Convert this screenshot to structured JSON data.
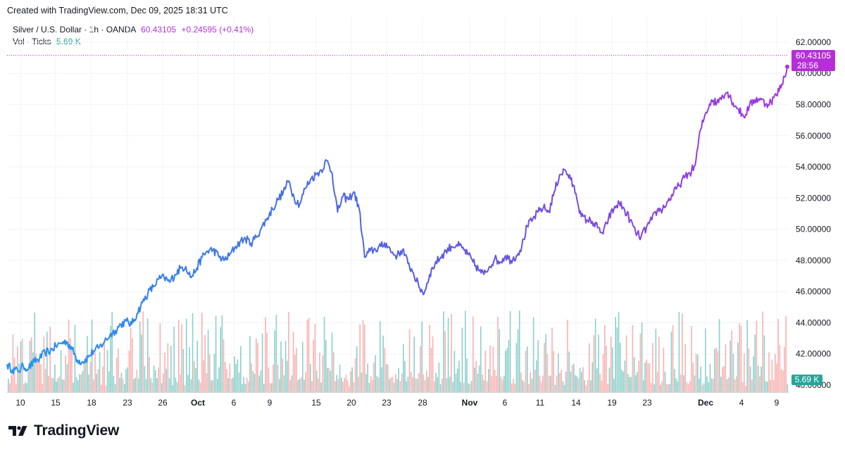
{
  "header": {
    "created_text": "Created with TradingView.com, Dec 09, 2025 18:31 UTC"
  },
  "legend": {
    "symbol": "Silver / U.S. Dollar · 1h · OANDA",
    "last": "60.43105",
    "change": "+0.24595 (+0.41%)",
    "vol_label": "Vol · Ticks",
    "vol_value": "5.69 K"
  },
  "price_tag": {
    "value": "60.43105",
    "countdown": "28:56"
  },
  "volume_tag": "5.69 K",
  "brand": {
    "name": "TradingView"
  },
  "colors": {
    "line_start": "#2196f3",
    "line_mid": "#5b5be0",
    "line_end": "#a437e0",
    "vol_up": "#80cbc4",
    "vol_down": "#f7a9a7",
    "price_tag": "#b62fd6",
    "vol_tag": "#26a69a"
  },
  "chart_data": {
    "type": "line",
    "title": "Silver / U.S. Dollar · 1h · OANDA",
    "y_axis": {
      "ylim": [
        40,
        62.9
      ],
      "ticks": [
        "62.00000",
        "60.00000",
        "58.00000",
        "56.00000",
        "54.00000",
        "52.00000",
        "50.00000",
        "48.00000",
        "46.00000",
        "44.00000",
        "42.00000",
        "40.00000"
      ]
    },
    "x_axis": {
      "ticks": [
        {
          "label": "10",
          "bold": false
        },
        {
          "label": "15",
          "bold": false
        },
        {
          "label": "18",
          "bold": false
        },
        {
          "label": "23",
          "bold": false
        },
        {
          "label": "26",
          "bold": false
        },
        {
          "label": "Oct",
          "bold": true
        },
        {
          "label": "6",
          "bold": false
        },
        {
          "label": "9",
          "bold": false
        },
        {
          "label": "15",
          "bold": false
        },
        {
          "label": "20",
          "bold": false
        },
        {
          "label": "23",
          "bold": false
        },
        {
          "label": "28",
          "bold": false
        },
        {
          "label": "Nov",
          "bold": true
        },
        {
          "label": "6",
          "bold": false
        },
        {
          "label": "11",
          "bold": false
        },
        {
          "label": "14",
          "bold": false
        },
        {
          "label": "19",
          "bold": false
        },
        {
          "label": "23",
          "bold": false
        },
        {
          "label": "Dec",
          "bold": true
        },
        {
          "label": "4",
          "bold": false
        },
        {
          "label": "9",
          "bold": false
        }
      ]
    },
    "grid": true,
    "series": [
      {
        "values": [
          41.3,
          41.0,
          40.9,
          41.2,
          41.1,
          41.5,
          41.7,
          42.1,
          42.2,
          42.5,
          42.7,
          42.8,
          42.3,
          41.6,
          41.5,
          41.8,
          42.2,
          42.4,
          42.8,
          43.2,
          43.5,
          43.9,
          44.1,
          43.9,
          44.6,
          45.3,
          45.9,
          46.3,
          46.8,
          46.9,
          46.6,
          47.1,
          47.5,
          47.6,
          46.9,
          47.5,
          48.2,
          48.6,
          48.7,
          48.3,
          48.0,
          48.3,
          48.8,
          49.2,
          49.4,
          49.1,
          49.5,
          50.1,
          50.7,
          51.3,
          51.9,
          52.4,
          53.1,
          52.0,
          51.6,
          52.6,
          53.2,
          53.5,
          53.8,
          54.4,
          53.6,
          51.1,
          52.1,
          51.9,
          52.4,
          51.3,
          48.2,
          48.6,
          48.7,
          48.9,
          49.1,
          48.5,
          48.3,
          48.7,
          47.8,
          47.2,
          46.3,
          45.9,
          47.1,
          47.8,
          48.2,
          48.6,
          48.9,
          49.0,
          48.8,
          48.4,
          47.9,
          47.4,
          47.1,
          47.6,
          48.1,
          47.9,
          48.3,
          48.0,
          48.3,
          48.9,
          50.2,
          50.6,
          51.1,
          51.4,
          51.1,
          52.4,
          53.5,
          53.8,
          53.2,
          52.3,
          50.8,
          50.6,
          50.5,
          50.1,
          49.7,
          50.7,
          51.3,
          51.7,
          51.2,
          50.6,
          49.8,
          49.5,
          50.1,
          50.6,
          51.2,
          51.3,
          51.8,
          52.3,
          52.8,
          53.3,
          53.6,
          54.1,
          56.4,
          57.5,
          58.3,
          58.1,
          58.6,
          58.8,
          58.1,
          57.7,
          57.2,
          57.9,
          58.3,
          58.4,
          58.0,
          58.2,
          58.6,
          59.3,
          60.43
        ]
      }
    ]
  }
}
